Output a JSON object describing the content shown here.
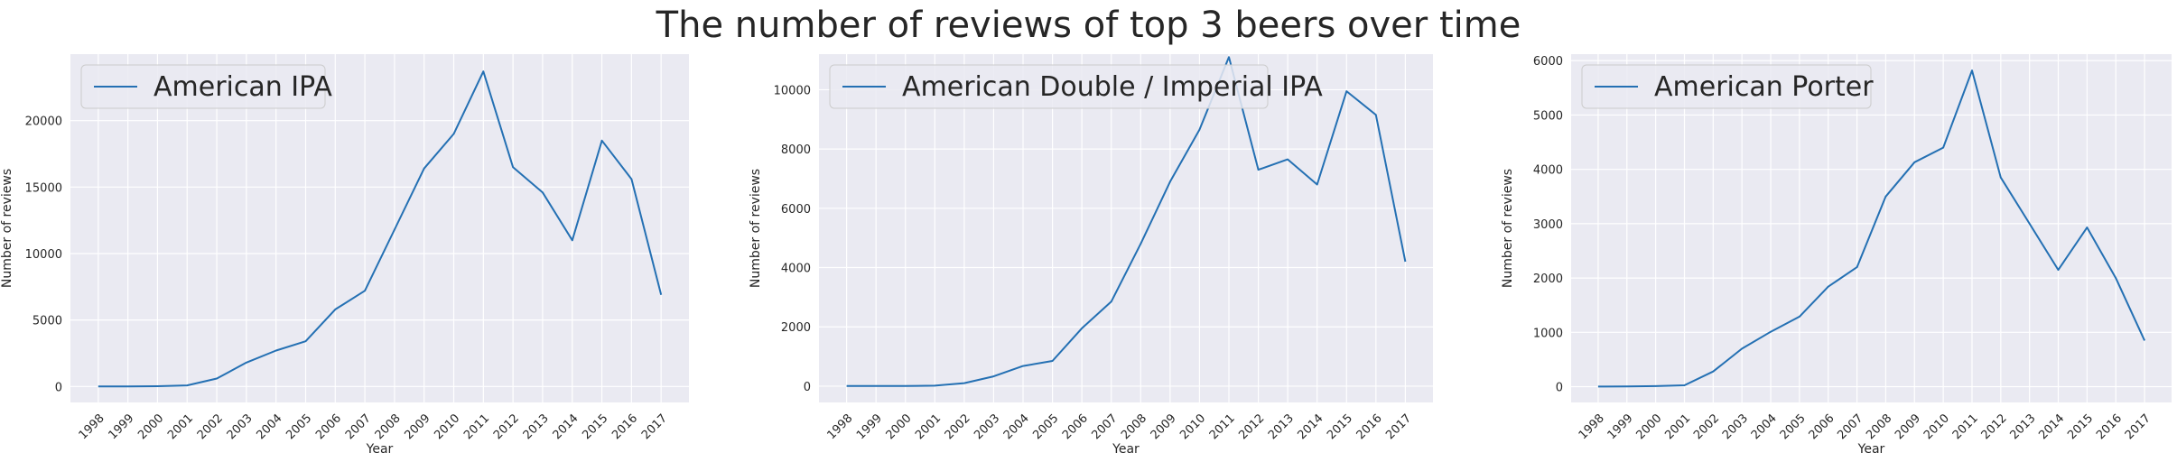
{
  "title": "The number of reviews of top 3 beers over time",
  "colors": {
    "line": "#2470b3",
    "plot_bg": "#eaeaf2",
    "grid": "#ffffff"
  },
  "chart_data": [
    {
      "type": "line",
      "title": "",
      "xlabel": "Year",
      "ylabel": "Number of reviews",
      "legend": "top-left",
      "grid": true,
      "categories": [
        "1998",
        "1999",
        "2000",
        "2001",
        "2002",
        "2003",
        "2004",
        "2005",
        "2006",
        "2007",
        "2008",
        "2009",
        "2010",
        "2011",
        "2012",
        "2013",
        "2014",
        "2015",
        "2016",
        "2017"
      ],
      "yticks": [
        0,
        5000,
        10000,
        15000,
        20000
      ],
      "ylim": [
        -1200,
        25000
      ],
      "series": [
        {
          "name": "American IPA",
          "values": [
            5,
            10,
            20,
            80,
            600,
            1800,
            2700,
            3400,
            5800,
            7200,
            11800,
            16400,
            19000,
            23700,
            16500,
            14600,
            11000,
            18500,
            15600,
            6900
          ]
        }
      ]
    },
    {
      "type": "line",
      "title": "",
      "xlabel": "Year",
      "ylabel": "Number of reviews",
      "legend": "top-left",
      "grid": true,
      "categories": [
        "1998",
        "1999",
        "2000",
        "2001",
        "2002",
        "2003",
        "2004",
        "2005",
        "2006",
        "2007",
        "2008",
        "2009",
        "2010",
        "2011",
        "2012",
        "2013",
        "2014",
        "2015",
        "2016",
        "2017"
      ],
      "yticks": [
        0,
        2000,
        4000,
        6000,
        8000,
        10000
      ],
      "ylim": [
        -550,
        11200
      ],
      "series": [
        {
          "name": "American Double / Imperial IPA",
          "values": [
            3,
            5,
            8,
            15,
            100,
            330,
            680,
            850,
            1950,
            2850,
            4800,
            6900,
            8650,
            11100,
            7300,
            7650,
            6800,
            9950,
            9150,
            4200
          ]
        }
      ]
    },
    {
      "type": "line",
      "title": "",
      "xlabel": "Year",
      "ylabel": "Number of reviews",
      "legend": "top-left",
      "grid": true,
      "categories": [
        "1998",
        "1999",
        "2000",
        "2001",
        "2002",
        "2003",
        "2004",
        "2005",
        "2006",
        "2007",
        "2008",
        "2009",
        "2010",
        "2011",
        "2012",
        "2013",
        "2014",
        "2015",
        "2016",
        "2017"
      ],
      "yticks": [
        0,
        1000,
        2000,
        3000,
        4000,
        5000,
        6000
      ],
      "ylim": [
        -290,
        6120
      ],
      "series": [
        {
          "name": "American Porter",
          "values": [
            2,
            5,
            10,
            25,
            280,
            700,
            1010,
            1290,
            1840,
            2200,
            3500,
            4130,
            4400,
            5820,
            3850,
            3000,
            2150,
            2930,
            2000,
            850
          ]
        }
      ]
    }
  ]
}
